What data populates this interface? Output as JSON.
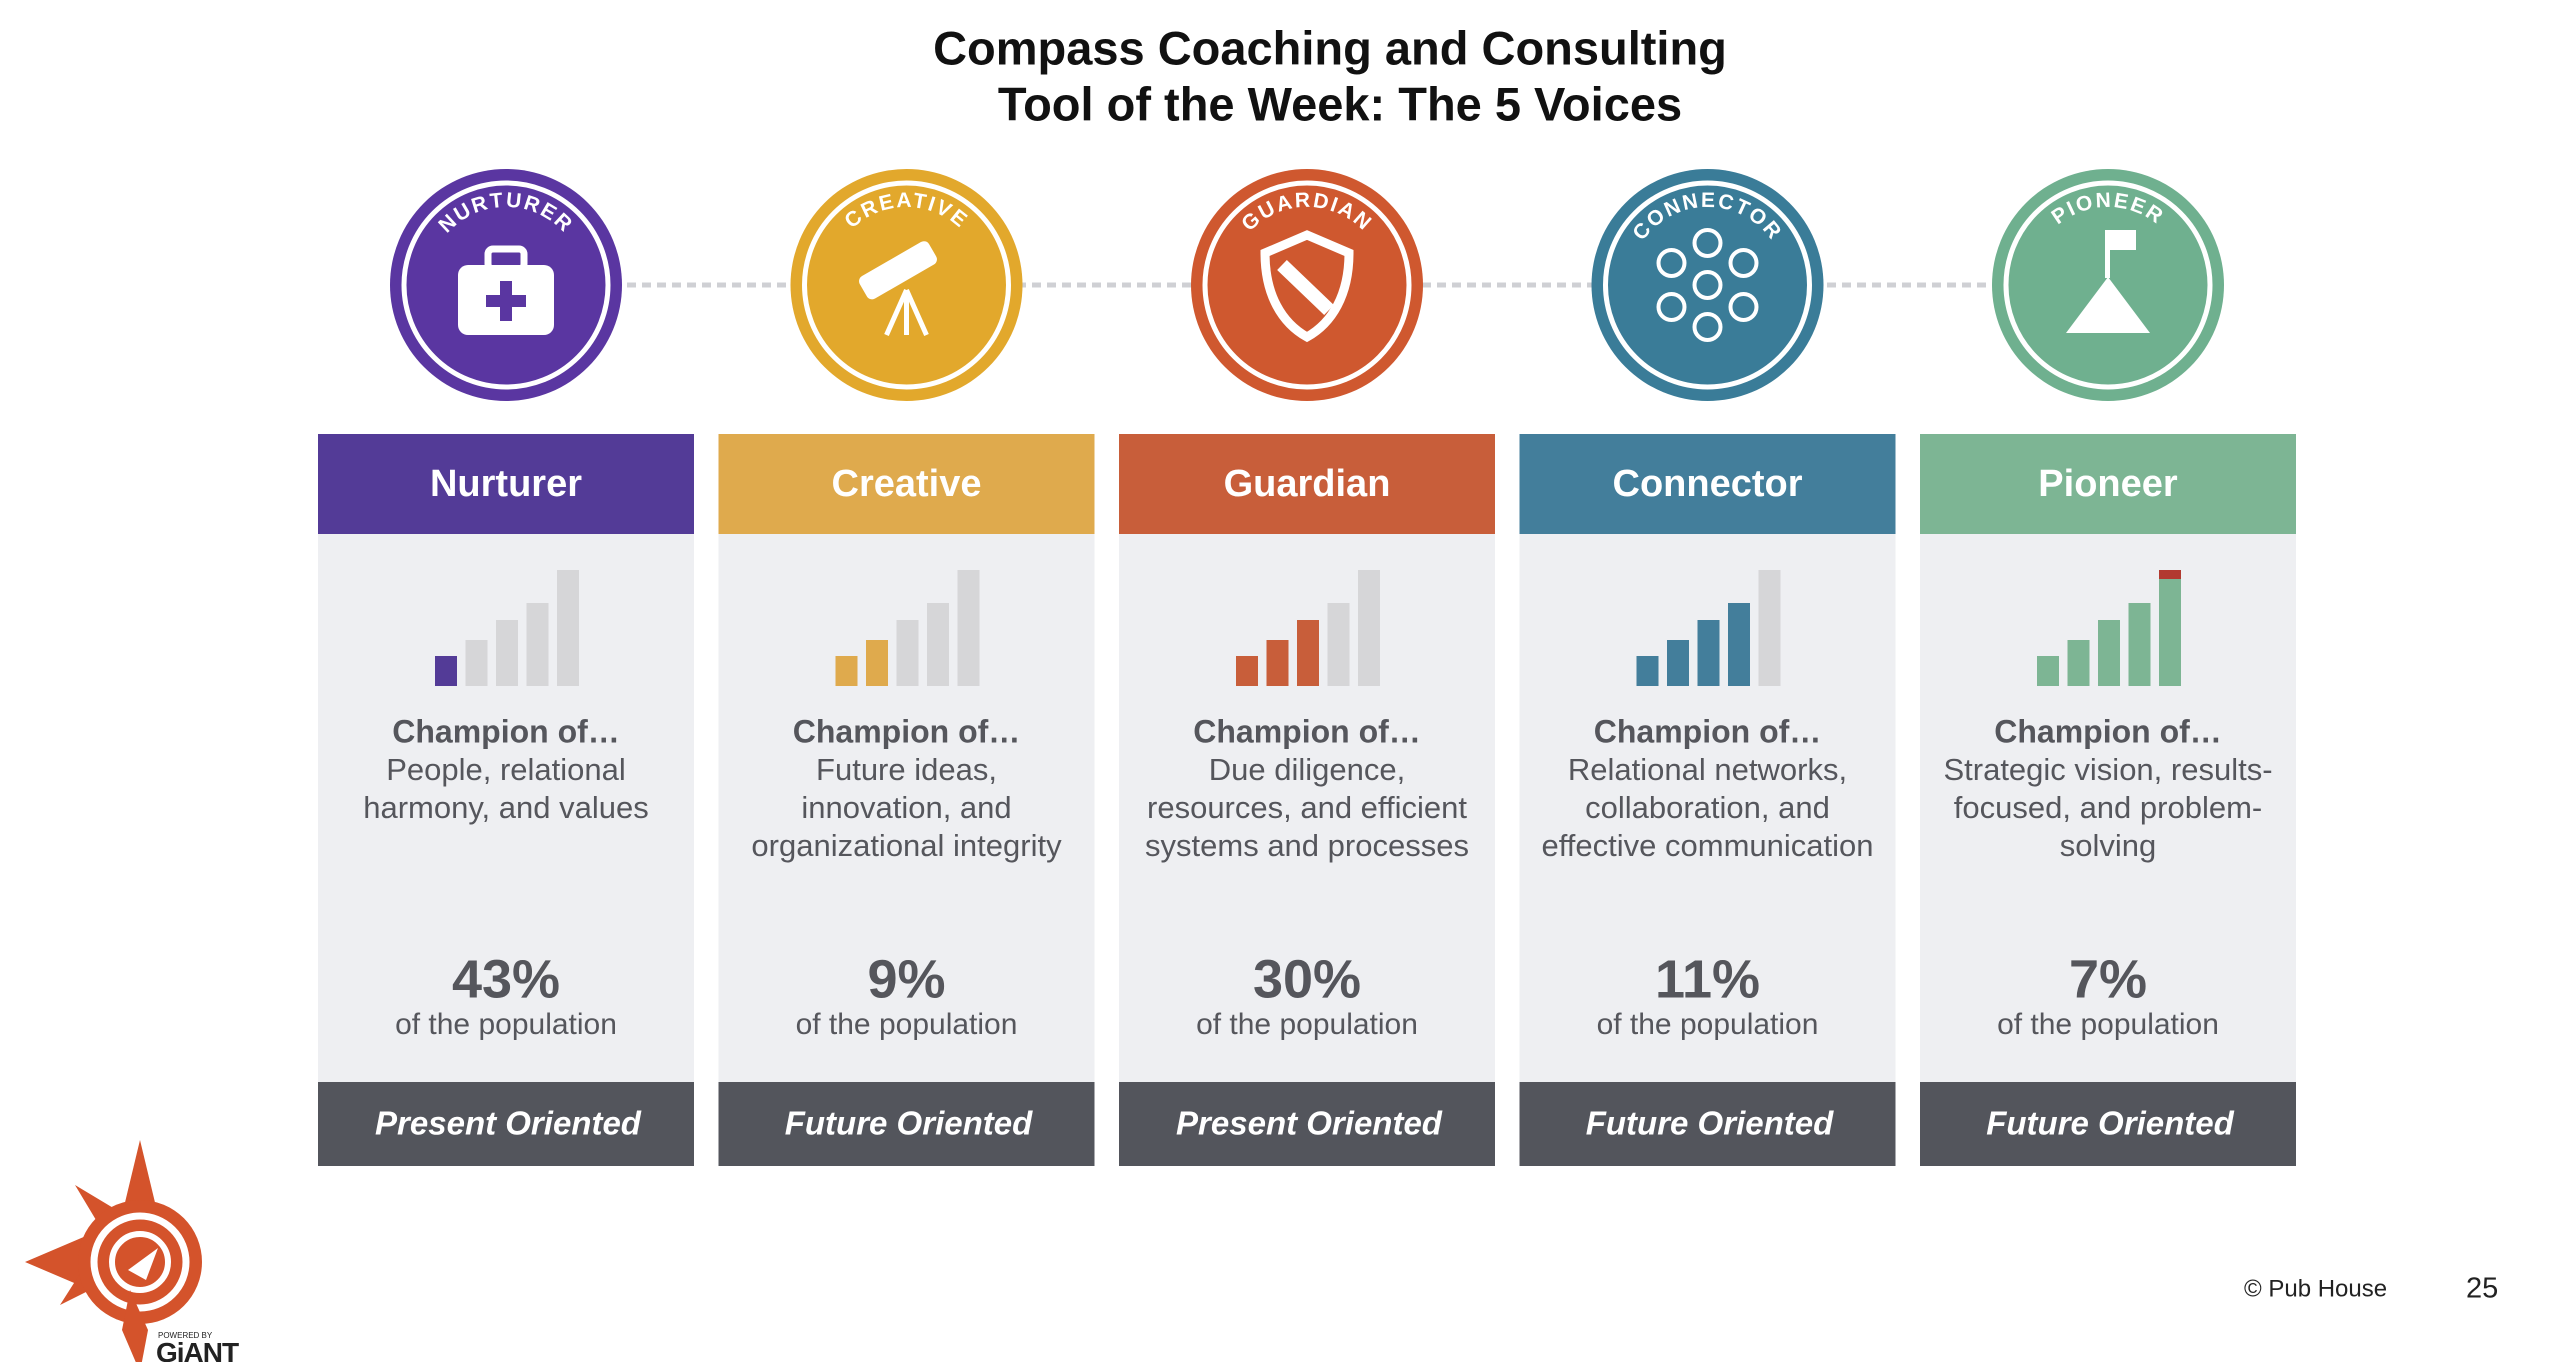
{
  "title": [
    "Compass Coaching and Consulting",
    "Tool of the Week: The 5 Voices"
  ],
  "voices": [
    {
      "badge": "NURTURER",
      "name": "Nurturer",
      "color": "#533b97",
      "badge_color": "#5a36a1",
      "champion": "Champion of…",
      "description": [
        "People, relational",
        "harmony, and values"
      ],
      "percent": "43%",
      "population": "of the population",
      "orientation": "Present Oriented"
    },
    {
      "badge": "CREATIVE",
      "name": "Creative",
      "color": "#dfaa4d",
      "badge_color": "#e2a82c",
      "champion": "Champion of…",
      "description": [
        "Future ideas,",
        "innovation, and",
        "organizational integrity"
      ],
      "percent": "9%",
      "population": "of the population",
      "orientation": "Future Oriented"
    },
    {
      "badge": "GUARDIAN",
      "name": "Guardian",
      "color": "#c85e3a",
      "badge_color": "#cf582f",
      "champion": "Champion of…",
      "description": [
        "Due diligence,",
        "resources, and efficient",
        "systems and processes"
      ],
      "percent": "30%",
      "population": "of the population",
      "orientation": "Present Oriented"
    },
    {
      "badge": "CONNECTOR",
      "name": "Connector",
      "color": "#437e9b",
      "badge_color": "#3a7c98",
      "champion": "Champion of…",
      "description": [
        "Relational networks,",
        "collaboration, and",
        "effective communication"
      ],
      "percent": "11%",
      "population": "of the population",
      "orientation": "Future Oriented"
    },
    {
      "badge": "PIONEER",
      "name": "Pioneer",
      "color": "#7db594",
      "badge_color": "#6fb08f",
      "champion": "Champion of…",
      "description": [
        "Strategic vision, results-",
        "focused, and problem-",
        "solving"
      ],
      "percent": "7%",
      "population": "of the population",
      "orientation": "Future Oriented"
    }
  ],
  "footer": {
    "copyright": "© Pub House",
    "page": "25",
    "logo_tagline": "POWERED BY",
    "logo": "GiANT"
  }
}
